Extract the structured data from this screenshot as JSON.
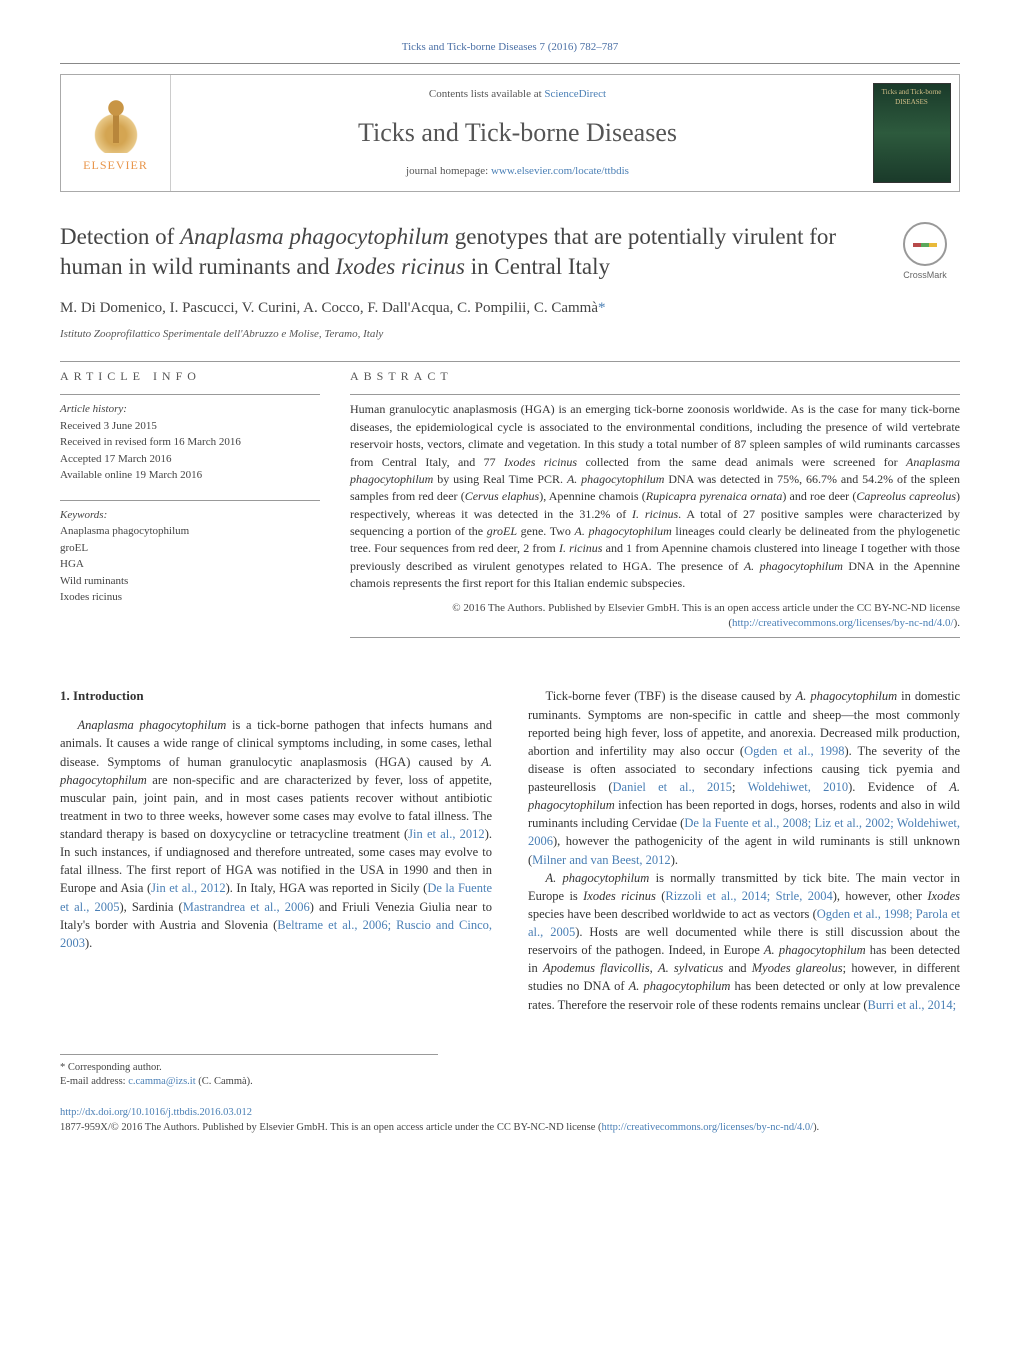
{
  "running_head": "Ticks and Tick-borne Diseases 7 (2016) 782–787",
  "masthead": {
    "publisher_label": "ELSEVIER",
    "contents_prefix": "Contents lists available at ",
    "contents_link": "ScienceDirect",
    "journal_name": "Ticks and Tick-borne Diseases",
    "homepage_prefix": "journal homepage: ",
    "homepage_link": "www.elsevier.com/locate/ttbdis",
    "cover_text": "Ticks and Tick-borne DISEASES"
  },
  "crossmark_label": "CrossMark",
  "title_segments": [
    {
      "t": "Detection of ",
      "i": false
    },
    {
      "t": "Anaplasma phagocytophilum",
      "i": true
    },
    {
      "t": " genotypes that are potentially virulent for human in wild ruminants and ",
      "i": false
    },
    {
      "t": "Ixodes ricinus",
      "i": true
    },
    {
      "t": " in Central Italy",
      "i": false
    }
  ],
  "authors": "M. Di Domenico, I. Pascucci, V. Curini, A. Cocco, F. Dall'Acqua, C. Pompilii, C. Cammà",
  "corr_marker": "*",
  "affiliation": "Istituto Zooprofilattico Sperimentale dell'Abruzzo e Molise, Teramo, Italy",
  "article_info": {
    "label": "article info",
    "history_hdr": "Article history:",
    "history": [
      "Received 3 June 2015",
      "Received in revised form 16 March 2016",
      "Accepted 17 March 2016",
      "Available online 19 March 2016"
    ],
    "keywords_hdr": "Keywords:",
    "keywords": [
      "Anaplasma phagocytophilum",
      "groEL",
      "HGA",
      "Wild ruminants",
      "Ixodes ricinus"
    ]
  },
  "abstract": {
    "label": "abstract",
    "text_segments": [
      {
        "t": "Human granulocytic anaplasmosis (HGA) is an emerging tick-borne zoonosis worldwide. As is the case for many tick-borne diseases, the epidemiological cycle is associated to the environmental conditions, including the presence of wild vertebrate reservoir hosts, vectors, climate and vegetation. In this study a total number of 87 spleen samples of wild ruminants carcasses from Central Italy, and 77 ",
        "i": false
      },
      {
        "t": "Ixodes ricinus",
        "i": true
      },
      {
        "t": " collected from the same dead animals were screened for ",
        "i": false
      },
      {
        "t": "Anaplasma phagocytophilum",
        "i": true
      },
      {
        "t": " by using Real Time PCR. ",
        "i": false
      },
      {
        "t": "A. phagocytophilum",
        "i": true
      },
      {
        "t": " DNA was detected in 75%, 66.7% and 54.2% of the spleen samples from red deer (",
        "i": false
      },
      {
        "t": "Cervus elaphus",
        "i": true
      },
      {
        "t": "), Apennine chamois (",
        "i": false
      },
      {
        "t": "Rupicapra pyrenaica ornata",
        "i": true
      },
      {
        "t": ") and roe deer (",
        "i": false
      },
      {
        "t": "Capreolus capreolus",
        "i": true
      },
      {
        "t": ") respectively, whereas it was detected in the 31.2% of ",
        "i": false
      },
      {
        "t": "I. ricinus",
        "i": true
      },
      {
        "t": ". A total of 27 positive samples were characterized by sequencing a portion of the ",
        "i": false
      },
      {
        "t": "groEL",
        "i": true
      },
      {
        "t": " gene. Two ",
        "i": false
      },
      {
        "t": "A. phagocytophilum",
        "i": true
      },
      {
        "t": " lineages could clearly be delineated from the phylogenetic tree. Four sequences from red deer, 2 from ",
        "i": false
      },
      {
        "t": "I. ricinus",
        "i": true
      },
      {
        "t": " and 1 from Apennine chamois clustered into lineage I together with those previously described as virulent genotypes related to HGA. The presence of ",
        "i": false
      },
      {
        "t": "A. phagocytophilum",
        "i": true
      },
      {
        "t": " DNA in the Apennine chamois represents the first report for this Italian endemic subspecies.",
        "i": false
      }
    ],
    "copyright": "© 2016 The Authors. Published by Elsevier GmbH. This is an open access article under the CC BY-NC-ND license (",
    "license_link": "http://creativecommons.org/licenses/by-nc-nd/4.0/",
    "copyright_suffix": ")."
  },
  "body": {
    "heading": "1. Introduction",
    "col1_html": "<span class=\"italic\">Anaplasma phagocytophilum</span> is a tick-borne pathogen that infects humans and animals. It causes a wide range of clinical symptoms including, in some cases, lethal disease. Symptoms of human granulocytic anaplasmosis (HGA) caused by <span class=\"italic\">A. phagocytophilum</span> are non-specific and are characterized by fever, loss of appetite, muscular pain, joint pain, and in most cases patients recover without antibiotic treatment in two to three weeks, however some cases may evolve to fatal illness. The standard therapy is based on doxycycline or tetracycline treatment (<a href=\"#\">Jin et al., 2012</a>). In such instances, if undiagnosed and therefore untreated, some cases may evolve to fatal illness. The first report of HGA was notified in the USA in 1990 and then in Europe and Asia (<a href=\"#\">Jin et al., 2012</a>). In Italy, HGA was reported in Sicily (<a href=\"#\">De la Fuente et al., 2005</a>), Sardinia (<a href=\"#\">Mastrandrea et al., 2006</a>) and Friuli Venezia Giulia near to Italy's border with Austria and Slovenia (<a href=\"#\">Beltrame et al., 2006; Ruscio and Cinco, 2003</a>).",
    "col2_html": "Tick-borne fever (TBF) is the disease caused by <span class=\"italic\">A. phagocytophilum</span> in domestic ruminants. Symptoms are non-specific in cattle and sheep—the most commonly reported being high fever, loss of appetite, and anorexia. Decreased milk production, abortion and infertility may also occur (<a href=\"#\">Ogden et al., 1998</a>). The severity of the disease is often associated to secondary infections causing tick pyemia and pasteurellosis (<a href=\"#\">Daniel et al., 2015</a>; <a href=\"#\">Woldehiwet, 2010</a>). Evidence of <span class=\"italic\">A. phagocytophilum</span> infection has been reported in dogs, horses, rodents and also in wild ruminants including Cervidae (<a href=\"#\">De la Fuente et al., 2008; Liz et al., 2002; Woldehiwet, 2006</a>), however the pathogenicity of the agent in wild ruminants is still unknown (<a href=\"#\">Milner and van Beest, 2012</a>).</p><p><span class=\"italic\">A. phagocytophilum</span> is normally transmitted by tick bite. The main vector in Europe is <span class=\"italic\">Ixodes ricinus</span> (<a href=\"#\">Rizzoli et al., 2014; Strle, 2004</a>), however, other <span class=\"italic\">Ixodes</span> species have been described worldwide to act as vectors (<a href=\"#\">Ogden et al., 1998; Parola et al., 2005</a>). Hosts are well documented while there is still discussion about the reservoirs of the pathogen. Indeed, in Europe <span class=\"italic\">A. phagocytophilum</span> has been detected in <span class=\"italic\">Apodemus flavicollis</span>, <span class=\"italic\">A. sylvaticus</span> and <span class=\"italic\">Myodes glareolus</span>; however, in different studies no DNA of <span class=\"italic\">A. phagocytophilum</span> has been detected or only at low prevalence rates. Therefore the reservoir role of these rodents remains unclear (<a href=\"#\">Burri et al., 2014;</a>"
  },
  "footnotes": {
    "corr_label": "* Corresponding author.",
    "email_label": "E-mail address: ",
    "email": "c.camma@izs.it",
    "email_name": " (C. Cammà)."
  },
  "doi": {
    "link": "http://dx.doi.org/10.1016/j.ttbdis.2016.03.012",
    "issn_line": "1877-959X/© 2016 The Authors. Published by Elsevier GmbH. This is an open access article under the CC BY-NC-ND license (",
    "issn_link": "http://creativecommons.org/licenses/by-nc-nd/4.0/",
    "issn_suffix": ")."
  },
  "colors": {
    "link": "#4a7fb5",
    "text": "#333333",
    "header_text": "#555555",
    "elsevier_orange": "#e8954a"
  },
  "typography": {
    "body_fontsize": 12.5,
    "title_fontsize": 23,
    "journal_name_fontsize": 26,
    "authors_fontsize": 15,
    "abstract_fontsize": 12,
    "footnote_fontsize": 10.5
  }
}
